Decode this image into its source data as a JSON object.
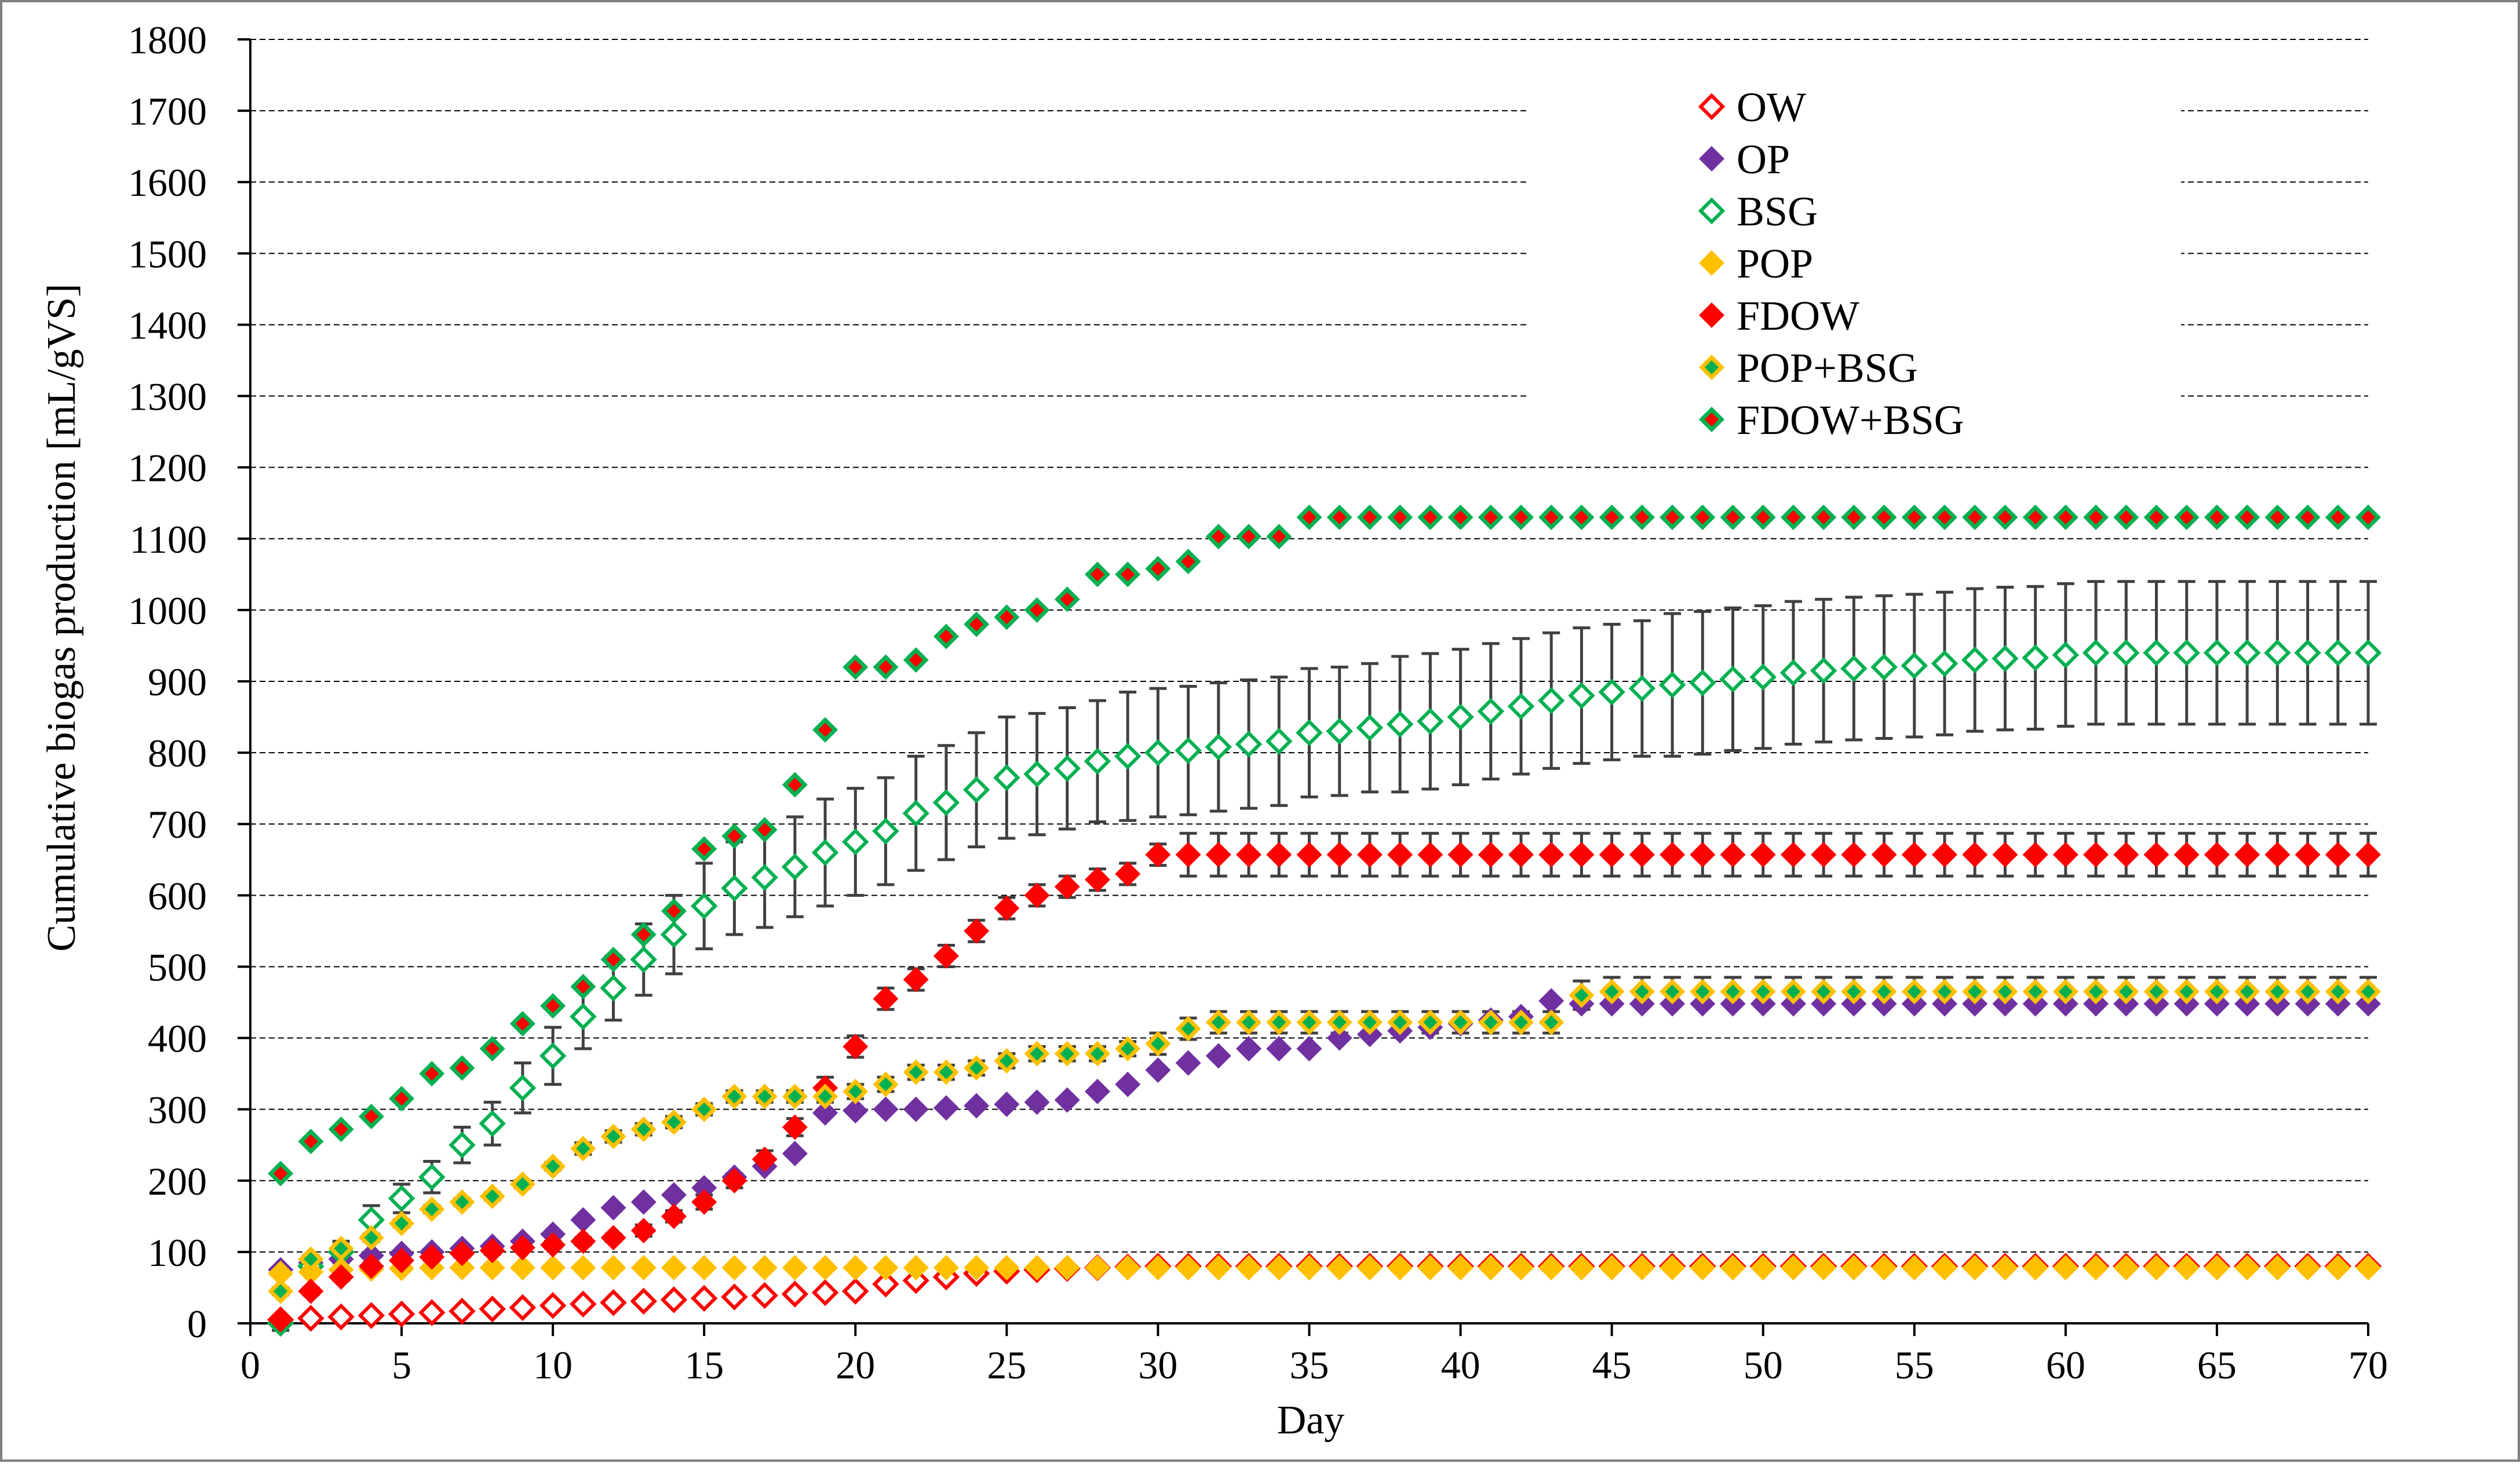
{
  "chart_data": {
    "type": "scatter",
    "title": "",
    "xlabel": "Day",
    "ylabel": "Cumulative biogas production [mL/gVS]",
    "xlim": [
      0,
      70
    ],
    "ylim": [
      0,
      1800
    ],
    "xticks": [
      0,
      5,
      10,
      15,
      20,
      25,
      30,
      35,
      40,
      45,
      50,
      55,
      60,
      65,
      70
    ],
    "yticks": [
      0,
      100,
      200,
      300,
      400,
      500,
      600,
      700,
      800,
      900,
      1000,
      1100,
      1200,
      1300,
      1400,
      1500,
      1600,
      1700,
      1800
    ],
    "grid": "horizontal-dashed",
    "legend_position": "top-right",
    "series": [
      {
        "name": "OW",
        "marker_style": "hollow",
        "fill": "#ffffff",
        "stroke": "#ff0000",
        "x": [
          1,
          2,
          3,
          4,
          5,
          6,
          7,
          8,
          9,
          10,
          11,
          12,
          13,
          14,
          15,
          16,
          17,
          18,
          19,
          20,
          21,
          22,
          23,
          24,
          25,
          26,
          27,
          28,
          29,
          30,
          31,
          32,
          33,
          34,
          35,
          36,
          37,
          38,
          39,
          40,
          41,
          42,
          43,
          44,
          45,
          46,
          47,
          48,
          49,
          50,
          51,
          52,
          53,
          54,
          55,
          56,
          57,
          58,
          59,
          60,
          61,
          62,
          63,
          64,
          65,
          66,
          67,
          68,
          69,
          70
        ],
        "values": [
          5,
          7,
          9,
          11,
          13,
          15,
          17,
          20,
          22,
          25,
          27,
          29,
          31,
          33,
          35,
          37,
          39,
          41,
          43,
          45,
          55,
          60,
          65,
          70,
          73,
          75,
          77,
          78,
          79,
          80,
          80,
          80,
          80,
          80,
          80,
          80,
          80,
          80,
          80,
          80,
          80,
          80,
          80,
          80,
          80,
          80,
          80,
          80,
          80,
          80,
          80,
          80,
          80,
          80,
          80,
          80,
          80,
          80,
          80,
          80,
          80,
          80,
          80,
          80,
          80,
          80,
          80,
          80,
          80,
          80
        ]
      },
      {
        "name": "OP",
        "marker_style": "solid",
        "fill": "#7030a0",
        "stroke": "#7030a0",
        "x": [
          1,
          2,
          3,
          4,
          5,
          6,
          7,
          8,
          9,
          10,
          11,
          12,
          13,
          14,
          15,
          16,
          17,
          18,
          19,
          20,
          21,
          22,
          23,
          24,
          25,
          26,
          27,
          28,
          29,
          30,
          31,
          32,
          33,
          34,
          35,
          36,
          37,
          38,
          39,
          40,
          41,
          42,
          43,
          44,
          45,
          46,
          47,
          48,
          49,
          50,
          51,
          52,
          53,
          54,
          55,
          56,
          57,
          58,
          59,
          60,
          61,
          62,
          63,
          64,
          65,
          66,
          67,
          68,
          69,
          70
        ],
        "values": [
          75,
          85,
          90,
          95,
          98,
          100,
          105,
          108,
          115,
          125,
          145,
          162,
          170,
          180,
          190,
          205,
          220,
          238,
          295,
          298,
          300,
          300,
          302,
          305,
          307,
          310,
          313,
          325,
          335,
          355,
          365,
          375,
          385,
          385,
          385,
          400,
          405,
          410,
          415,
          420,
          425,
          430,
          452,
          448,
          448,
          448,
          448,
          448,
          448,
          448,
          448,
          448,
          448,
          448,
          448,
          448,
          448,
          448,
          448,
          448,
          448,
          448,
          448,
          448,
          448,
          448,
          448,
          448,
          448,
          448
        ]
      },
      {
        "name": "BSG",
        "marker_style": "hollow",
        "fill": "#ffffff",
        "stroke": "#00b050",
        "x": [
          1,
          2,
          3,
          4,
          5,
          6,
          7,
          8,
          9,
          10,
          11,
          12,
          13,
          14,
          15,
          16,
          17,
          18,
          19,
          20,
          21,
          22,
          23,
          24,
          25,
          26,
          27,
          28,
          29,
          30,
          31,
          32,
          33,
          34,
          35,
          36,
          37,
          38,
          39,
          40,
          41,
          42,
          43,
          44,
          45,
          46,
          47,
          48,
          49,
          50,
          51,
          52,
          53,
          54,
          55,
          56,
          57,
          58,
          59,
          60,
          61,
          62,
          63,
          64,
          65,
          66,
          67,
          68,
          69,
          70
        ],
        "values": [
          0,
          80,
          100,
          145,
          175,
          205,
          250,
          280,
          330,
          375,
          430,
          470,
          510,
          545,
          585,
          610,
          625,
          640,
          660,
          675,
          690,
          715,
          730,
          748,
          765,
          770,
          778,
          788,
          795,
          800,
          803,
          808,
          812,
          816,
          828,
          830,
          835,
          840,
          844,
          850,
          858,
          865,
          873,
          880,
          885,
          890,
          895,
          898,
          903,
          906,
          912,
          915,
          918,
          920,
          922,
          925,
          930,
          932,
          933,
          937,
          940,
          940,
          940,
          940,
          940,
          940,
          940,
          940,
          940,
          940
        ],
        "error": [
          10,
          12,
          15,
          20,
          20,
          22,
          25,
          30,
          35,
          40,
          45,
          45,
          50,
          55,
          60,
          65,
          70,
          70,
          75,
          75,
          75,
          80,
          80,
          80,
          85,
          85,
          85,
          85,
          90,
          90,
          90,
          90,
          90,
          90,
          90,
          90,
          90,
          95,
          95,
          95,
          95,
          95,
          95,
          95,
          95,
          95,
          100,
          100,
          100,
          100,
          100,
          100,
          100,
          100,
          100,
          100,
          100,
          100,
          100,
          100,
          100,
          100,
          100,
          100,
          100,
          100,
          100,
          100,
          100,
          100
        ]
      },
      {
        "name": "POP",
        "marker_style": "solid",
        "fill": "#ffc000",
        "stroke": "#ffc000",
        "x": [
          1,
          2,
          3,
          4,
          5,
          6,
          7,
          8,
          9,
          10,
          11,
          12,
          13,
          14,
          15,
          16,
          17,
          18,
          19,
          20,
          21,
          22,
          23,
          24,
          25,
          26,
          27,
          28,
          29,
          30,
          31,
          32,
          33,
          34,
          35,
          36,
          37,
          38,
          39,
          40,
          41,
          42,
          43,
          44,
          45,
          46,
          47,
          48,
          49,
          50,
          51,
          52,
          53,
          54,
          55,
          56,
          57,
          58,
          59,
          60,
          61,
          62,
          63,
          64,
          65,
          66,
          67,
          68,
          69,
          70
        ],
        "values": [
          70,
          72,
          75,
          76,
          77,
          78,
          78,
          78,
          78,
          78,
          78,
          78,
          78,
          78,
          78,
          78,
          78,
          78,
          78,
          78,
          78,
          78,
          78,
          78,
          78,
          78,
          78,
          78,
          78,
          78,
          78,
          78,
          78,
          78,
          78,
          78,
          78,
          78,
          78,
          78,
          78,
          78,
          78,
          78,
          78,
          78,
          78,
          78,
          78,
          78,
          78,
          78,
          78,
          78,
          78,
          78,
          78,
          78,
          78,
          78,
          78,
          78,
          78,
          78,
          78,
          78,
          78,
          78,
          78,
          78
        ]
      },
      {
        "name": "FDOW",
        "marker_style": "solid",
        "fill": "#ff0000",
        "stroke": "#ff0000",
        "x": [
          1,
          2,
          3,
          4,
          5,
          6,
          7,
          8,
          9,
          10,
          11,
          12,
          13,
          14,
          15,
          16,
          17,
          18,
          19,
          20,
          21,
          22,
          23,
          24,
          25,
          26,
          27,
          28,
          29,
          30,
          31,
          32,
          33,
          34,
          35,
          36,
          37,
          38,
          39,
          40,
          41,
          42,
          43,
          44,
          45,
          46,
          47,
          48,
          49,
          50,
          51,
          52,
          53,
          54,
          55,
          56,
          57,
          58,
          59,
          60,
          61,
          62,
          63,
          64,
          65,
          66,
          67,
          68,
          69,
          70
        ],
        "values": [
          5,
          45,
          65,
          80,
          88,
          93,
          98,
          102,
          106,
          110,
          115,
          120,
          130,
          150,
          170,
          200,
          230,
          275,
          330,
          388,
          455,
          482,
          515,
          550,
          582,
          600,
          612,
          622,
          630,
          657,
          657,
          657,
          657,
          657,
          657,
          657,
          657,
          657,
          657,
          657,
          657,
          657,
          657,
          657,
          657,
          657,
          657,
          657,
          657,
          657,
          657,
          657,
          657,
          657,
          657,
          657,
          657,
          657,
          657,
          657,
          657,
          657,
          657,
          657,
          657,
          657,
          657,
          657,
          657,
          657
        ],
        "error": [
          0,
          5,
          5,
          5,
          5,
          5,
          5,
          5,
          5,
          5,
          5,
          5,
          8,
          8,
          10,
          10,
          12,
          12,
          15,
          15,
          15,
          15,
          15,
          15,
          15,
          15,
          15,
          15,
          15,
          15,
          30,
          30,
          30,
          30,
          30,
          30,
          30,
          30,
          30,
          30,
          30,
          30,
          30,
          30,
          30,
          30,
          30,
          30,
          30,
          30,
          30,
          30,
          30,
          30,
          30,
          30,
          30,
          30,
          30,
          30,
          30,
          30,
          30,
          30,
          30,
          30,
          30,
          30,
          30,
          30
        ]
      },
      {
        "name": "POP+BSG",
        "marker_style": "bordered",
        "fill": "#00b050",
        "stroke": "#ffc000",
        "x": [
          1,
          2,
          3,
          4,
          5,
          6,
          7,
          8,
          9,
          10,
          11,
          12,
          13,
          14,
          15,
          16,
          17,
          18,
          19,
          20,
          21,
          22,
          23,
          24,
          25,
          26,
          27,
          28,
          29,
          30,
          31,
          32,
          33,
          34,
          35,
          36,
          37,
          38,
          39,
          40,
          41,
          42,
          43,
          44,
          45,
          46,
          47,
          48,
          49,
          50,
          51,
          52,
          53,
          54,
          55,
          56,
          57,
          58,
          59,
          60,
          61,
          62,
          63,
          64,
          65,
          66,
          67,
          68,
          69,
          70
        ],
        "values": [
          45,
          90,
          105,
          120,
          140,
          160,
          170,
          178,
          195,
          220,
          245,
          262,
          272,
          282,
          300,
          318,
          318,
          318,
          318,
          325,
          335,
          352,
          352,
          358,
          368,
          378,
          378,
          378,
          385,
          392,
          413,
          422,
          422,
          422,
          422,
          422,
          422,
          422,
          422,
          422,
          422,
          422,
          422,
          460,
          465,
          465,
          465,
          465,
          465,
          465,
          465,
          465,
          465,
          465,
          465,
          465,
          465,
          465,
          465,
          465,
          465,
          465,
          465,
          465,
          465,
          465,
          465,
          465,
          465,
          465
        ],
        "error": [
          5,
          5,
          5,
          5,
          5,
          5,
          5,
          5,
          5,
          5,
          8,
          8,
          8,
          8,
          8,
          8,
          8,
          8,
          8,
          10,
          10,
          10,
          10,
          10,
          10,
          10,
          10,
          10,
          10,
          15,
          15,
          15,
          15,
          15,
          15,
          15,
          15,
          15,
          15,
          15,
          15,
          15,
          15,
          20,
          20,
          20,
          20,
          20,
          20,
          20,
          20,
          20,
          20,
          20,
          20,
          20,
          20,
          20,
          20,
          20,
          20,
          20,
          20,
          20,
          20,
          20,
          20,
          20,
          20,
          20
        ]
      },
      {
        "name": "FDOW+BSG",
        "marker_style": "bordered",
        "fill": "#ff0000",
        "stroke": "#00b050",
        "x": [
          1,
          2,
          3,
          4,
          5,
          6,
          7,
          8,
          9,
          10,
          11,
          12,
          13,
          14,
          15,
          16,
          17,
          18,
          19,
          20,
          21,
          22,
          23,
          24,
          25,
          26,
          27,
          28,
          29,
          30,
          31,
          32,
          33,
          34,
          35,
          36,
          37,
          38,
          39,
          40,
          41,
          42,
          43,
          44,
          45,
          46,
          47,
          48,
          49,
          50,
          51,
          52,
          53,
          54,
          55,
          56,
          57,
          58,
          59,
          60,
          61,
          62,
          63,
          64,
          65,
          66,
          67,
          68,
          69,
          70
        ],
        "values": [
          210,
          255,
          272,
          290,
          315,
          350,
          358,
          385,
          420,
          445,
          472,
          510,
          545,
          578,
          665,
          683,
          692,
          755,
          832,
          920,
          920,
          930,
          963,
          980,
          990,
          1000,
          1015,
          1050,
          1050,
          1058,
          1068,
          1103,
          1103,
          1103,
          1130,
          1130,
          1130,
          1130,
          1130,
          1130,
          1130,
          1130,
          1130,
          1130,
          1130,
          1130,
          1130,
          1130,
          1130,
          1130,
          1130,
          1130,
          1130,
          1130,
          1130,
          1130,
          1130,
          1130,
          1130,
          1130,
          1130,
          1130,
          1130,
          1130,
          1130,
          1130,
          1130,
          1130,
          1130,
          1130
        ]
      }
    ]
  }
}
